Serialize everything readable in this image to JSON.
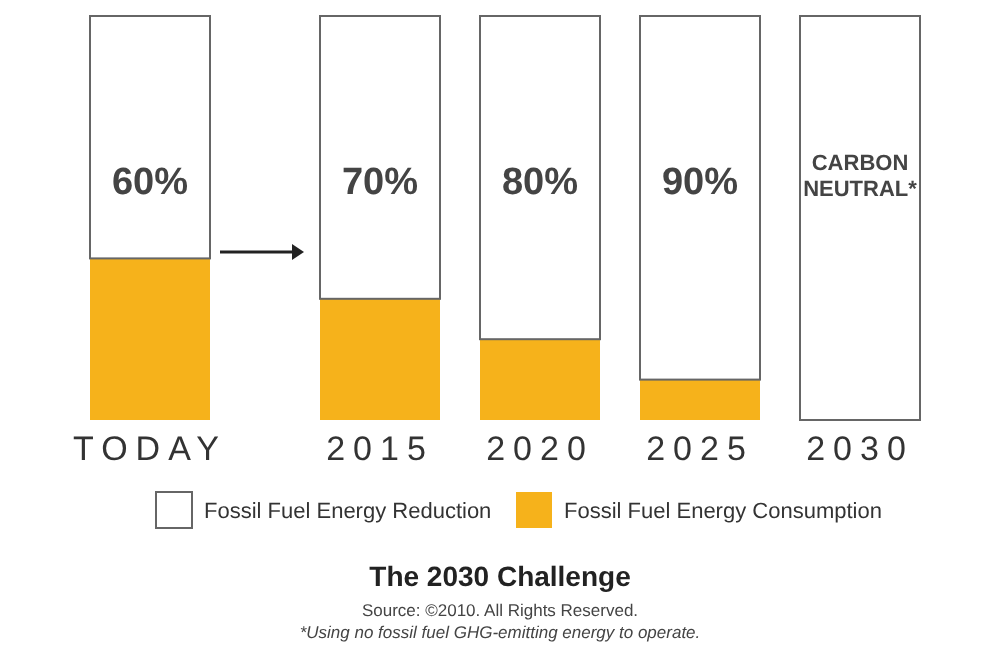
{
  "chart_data": {
    "type": "bar",
    "stacked": true,
    "legend": "bottom",
    "ylim": [
      0,
      100
    ],
    "title": "The 2030 Challenge",
    "categories": [
      "TODAY",
      "2015",
      "2020",
      "2025",
      "2030"
    ],
    "series": [
      {
        "name": "Fossil Fuel Energy Consumption",
        "color": "#f6b21b",
        "values": [
          40,
          30,
          20,
          10,
          0
        ]
      },
      {
        "name": "Fossil Fuel Energy Reduction",
        "color": "#ffffff",
        "values": [
          60,
          70,
          80,
          90,
          100
        ],
        "value_labels": [
          "60%",
          "70%",
          "80%",
          "90%",
          "CARBON NEUTRAL*"
        ]
      }
    ],
    "annotations": [
      "Source: ©2010. All Rights Reserved.",
      "*Using no fossil fuel GHG-emitting energy to operate."
    ]
  }
}
